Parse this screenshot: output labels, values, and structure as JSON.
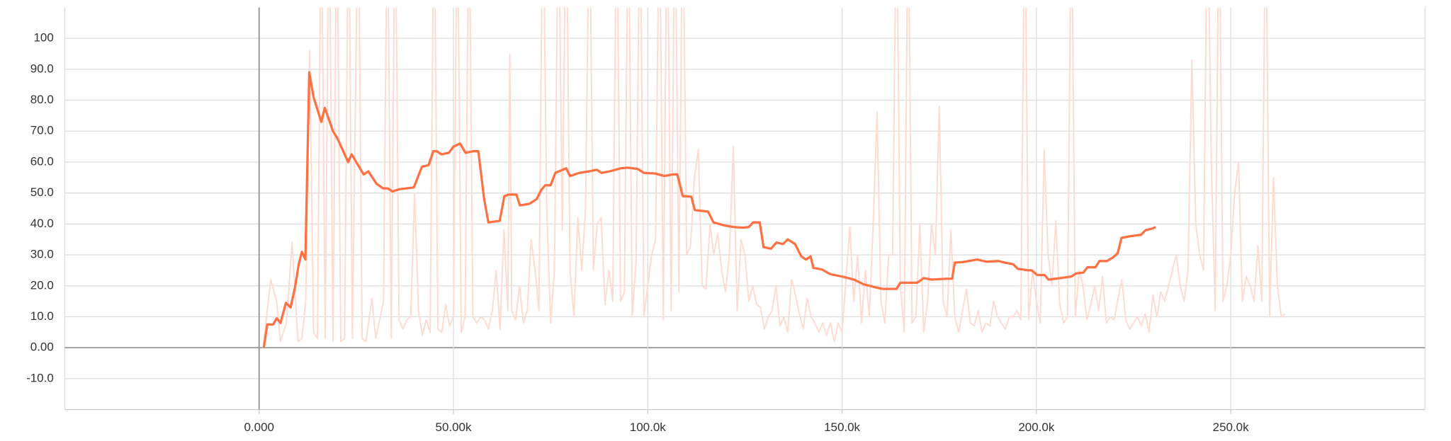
{
  "chart_data": {
    "type": "line",
    "xlim": [
      -50000,
      300000
    ],
    "ylim": [
      -20,
      110
    ],
    "xticks": [
      {
        "value": 0,
        "label": "0.000"
      },
      {
        "value": 50000,
        "label": "50.00k"
      },
      {
        "value": 100000,
        "label": "100.0k"
      },
      {
        "value": 150000,
        "label": "150.0k"
      },
      {
        "value": 200000,
        "label": "200.0k"
      },
      {
        "value": 250000,
        "label": "250.0k"
      }
    ],
    "yticks": [
      {
        "value": -10,
        "label": "-10.0"
      },
      {
        "value": 0,
        "label": "0.00"
      },
      {
        "value": 10,
        "label": "10.0"
      },
      {
        "value": 20,
        "label": "20.0"
      },
      {
        "value": 30,
        "label": "30.0"
      },
      {
        "value": 40,
        "label": "40.0"
      },
      {
        "value": 50,
        "label": "50.0"
      },
      {
        "value": 60,
        "label": "60.0"
      },
      {
        "value": 70,
        "label": "70.0"
      },
      {
        "value": 80,
        "label": "80.0"
      },
      {
        "value": 90,
        "label": "90.0"
      },
      100
    ],
    "grid": true,
    "series": [
      {
        "color": "#fcdcd2",
        "width": 1.5,
        "x": [
          1000,
          3000,
          4500,
          5500,
          7000,
          8500,
          10000,
          11000,
          12000,
          13000,
          14000,
          15000,
          16000,
          17000,
          18000,
          19000,
          20000,
          21000,
          22000,
          23000,
          24000,
          25500,
          26500,
          27500,
          29000,
          30000,
          32000,
          33000,
          34000,
          35000,
          36000,
          37000,
          38000,
          39000,
          40000,
          41000,
          42000,
          43000,
          44000,
          45000,
          46000,
          47000,
          48000,
          49000,
          50000,
          51000,
          52000,
          53000,
          54000,
          55000,
          56000,
          57000,
          58000,
          59000,
          60000,
          61000,
          62000,
          63000,
          64000,
          64500,
          65000,
          66000,
          67000,
          68000,
          69000,
          70000,
          71000,
          72000,
          73000,
          74000,
          75000,
          76000,
          77000,
          78000,
          79000,
          80000,
          81000,
          82000,
          83000,
          84000,
          85000,
          86000,
          87000,
          88000,
          89000,
          90000,
          91000,
          92000,
          93000,
          94000,
          95000,
          96000,
          97000,
          98000,
          99000,
          100000,
          101000,
          102000,
          103000,
          104000,
          105000,
          106000,
          107000,
          108000,
          109000,
          110000,
          111000,
          112000,
          113000,
          114000,
          115000,
          116000,
          117000,
          118000,
          119000,
          120000,
          121000,
          122000,
          123000,
          124000,
          125000,
          126000,
          127000,
          128000,
          129000,
          130000,
          131000,
          132000,
          133000,
          134000,
          135000,
          136000,
          137000,
          138000,
          139000,
          140000,
          141000,
          142000,
          143000,
          144000,
          145000,
          146000,
          147000,
          148000,
          149000,
          150000,
          152000,
          153000,
          154000,
          155000,
          156000,
          157000,
          158000,
          159000,
          160000,
          161000,
          162000,
          163000,
          164000,
          165000,
          166000,
          167000,
          168000,
          169000,
          170000,
          171000,
          172000,
          173000,
          174000,
          175000,
          176000,
          177000,
          178000,
          179000,
          180000,
          181000,
          182000,
          183000,
          184000,
          185000,
          186000,
          187000,
          188000,
          189000,
          190000,
          191000,
          192000,
          193000,
          194000,
          195000,
          196000,
          197000,
          198000,
          199000,
          200000,
          201000,
          202000,
          203000,
          204000,
          205000,
          206000,
          207000,
          208000,
          209000,
          210000,
          211000,
          212000,
          213000,
          214000,
          215000,
          216000,
          217000,
          218000,
          219000,
          220000,
          221000,
          222000,
          223000,
          224000,
          225000,
          226000,
          227000,
          228000,
          229000,
          230000,
          231000,
          232000,
          233000,
          234000,
          235000,
          236000,
          237000,
          238000,
          239000,
          240000,
          241000,
          242000,
          243000,
          244000,
          245000,
          246000,
          247000,
          248000,
          249000,
          250000,
          251000,
          252000,
          253000,
          254000,
          255000,
          256000,
          257000,
          258000,
          259000,
          260000,
          261000,
          262000,
          263000,
          264000
        ],
        "values": [
          0,
          22,
          15,
          2,
          8,
          34,
          2,
          3,
          15,
          96,
          5,
          3,
          150,
          3,
          150,
          2,
          150,
          2,
          3,
          150,
          3,
          150,
          3,
          2,
          16,
          3,
          15,
          150,
          3,
          150,
          9,
          6,
          9,
          10,
          50,
          12,
          4,
          9,
          5,
          150,
          6,
          5,
          14,
          7,
          10,
          150,
          5,
          10,
          150,
          10,
          8,
          10,
          9,
          6,
          12,
          25,
          6,
          38,
          12,
          95,
          12,
          9,
          20,
          8,
          12,
          35,
          25,
          12,
          150,
          45,
          8,
          25,
          150,
          38,
          150,
          25,
          10,
          42,
          25,
          45,
          150,
          25,
          40,
          42,
          14,
          25,
          15,
          150,
          15,
          18,
          150,
          10,
          28,
          150,
          10,
          20,
          30,
          35,
          150,
          9,
          150,
          12,
          150,
          18,
          150,
          30,
          33,
          55,
          64,
          20,
          19,
          40,
          30,
          37,
          25,
          18,
          30,
          65,
          12,
          35,
          30,
          15,
          20,
          14,
          13,
          6,
          10,
          12,
          20,
          7,
          10,
          5,
          22,
          17,
          11,
          6,
          16,
          10,
          8,
          5,
          8,
          4,
          8,
          2,
          8,
          5,
          39,
          15,
          30,
          8,
          25,
          10,
          40,
          76,
          15,
          8,
          30,
          30,
          150,
          20,
          5,
          150,
          8,
          10,
          40,
          5,
          15,
          40,
          30,
          78,
          15,
          10,
          38,
          10,
          5,
          12,
          19,
          8,
          7,
          12,
          5,
          8,
          7,
          15,
          10,
          8,
          6,
          10,
          10,
          12,
          9,
          150,
          9,
          25,
          15,
          8,
          64,
          30,
          20,
          41,
          14,
          8,
          10,
          150,
          10,
          25,
          20,
          9,
          14,
          20,
          12,
          23,
          8,
          10,
          9,
          16,
          22,
          9,
          6,
          8,
          10,
          7,
          11,
          5,
          17,
          10,
          18,
          15,
          20,
          25,
          30,
          20,
          15,
          25,
          93,
          40,
          30,
          25,
          150,
          60,
          12,
          150,
          15,
          20,
          30,
          50,
          60,
          15,
          23,
          20,
          15,
          33,
          15,
          150,
          10,
          55,
          20,
          10,
          11
        ]
      },
      {
        "color": "#ff7043",
        "width": 2.5,
        "x": [
          1200,
          2100,
          3600,
          4500,
          5500,
          6900,
          8100,
          9300,
          10200,
          11000,
          11900,
          12900,
          14000,
          16000,
          16900,
          19000,
          20200,
          22900,
          23800,
          26900,
          28100,
          30200,
          31900,
          33100,
          34300,
          36000,
          39800,
          41900,
          43600,
          44800,
          45700,
          46900,
          48800,
          50000,
          51700,
          53100,
          55000,
          56400,
          57900,
          59000,
          61900,
          63100,
          64300,
          66200,
          67100,
          69500,
          71400,
          72600,
          73600,
          75000,
          76200,
          78100,
          79000,
          80000,
          82400,
          84800,
          86900,
          88100,
          90200,
          93100,
          94800,
          97400,
          99000,
          101900,
          104300,
          106400,
          107600,
          109000,
          111200,
          112100,
          115500,
          116900,
          119800,
          122100,
          124500,
          126000,
          127100,
          128800,
          129800,
          131700,
          133100,
          134800,
          136000,
          137900,
          139500,
          140700,
          141900,
          142600,
          144800,
          146900,
          150000,
          153100,
          155500,
          158600,
          160500,
          164000,
          165000,
          169300,
          171000,
          173100,
          176900,
          178300,
          179000,
          181200,
          184800,
          187100,
          190200,
          191900,
          194000,
          195200,
          197900,
          198800,
          200200,
          202100,
          203100,
          206200,
          209000,
          210200,
          212100,
          213100,
          215200,
          216200,
          218100,
          219500,
          220900,
          221900,
          224000,
          226900,
          228100,
          229800,
          230700
        ],
        "values": [
          0,
          7.5,
          7.5,
          9.5,
          8,
          14.5,
          13,
          20,
          27,
          31,
          28.5,
          89,
          81,
          73,
          77.5,
          70,
          67.5,
          60,
          62.5,
          56,
          57,
          53,
          51.5,
          51.5,
          50.5,
          51.2,
          51.8,
          58.5,
          59,
          63.5,
          63.5,
          62.5,
          63,
          65,
          66,
          63,
          63.5,
          63.5,
          48,
          40.5,
          41,
          49,
          49.5,
          49.5,
          46,
          46.5,
          48,
          51,
          52.5,
          52.5,
          56.5,
          57.5,
          58,
          55.5,
          56.5,
          57,
          57.5,
          56.5,
          57,
          58,
          58.2,
          57.8,
          56.5,
          56.3,
          55.5,
          56,
          56,
          49,
          48.8,
          44.5,
          44,
          40.5,
          39.5,
          39,
          38.8,
          39,
          40.5,
          40.5,
          32.5,
          32,
          34,
          33.5,
          35,
          33.5,
          29.5,
          28.5,
          29.5,
          25.8,
          25.3,
          23.8,
          23,
          22,
          20.5,
          19.5,
          19,
          19,
          21,
          21,
          22.5,
          22,
          22.3,
          22.3,
          27.5,
          27.7,
          28.5,
          27.8,
          28,
          27.5,
          27,
          25.5,
          25,
          25,
          23.5,
          23.5,
          22,
          22.5,
          23,
          24,
          24.3,
          26,
          26,
          28,
          28,
          29,
          30.5,
          35.5,
          36,
          36.5,
          38,
          38.5,
          39
        ]
      }
    ]
  }
}
